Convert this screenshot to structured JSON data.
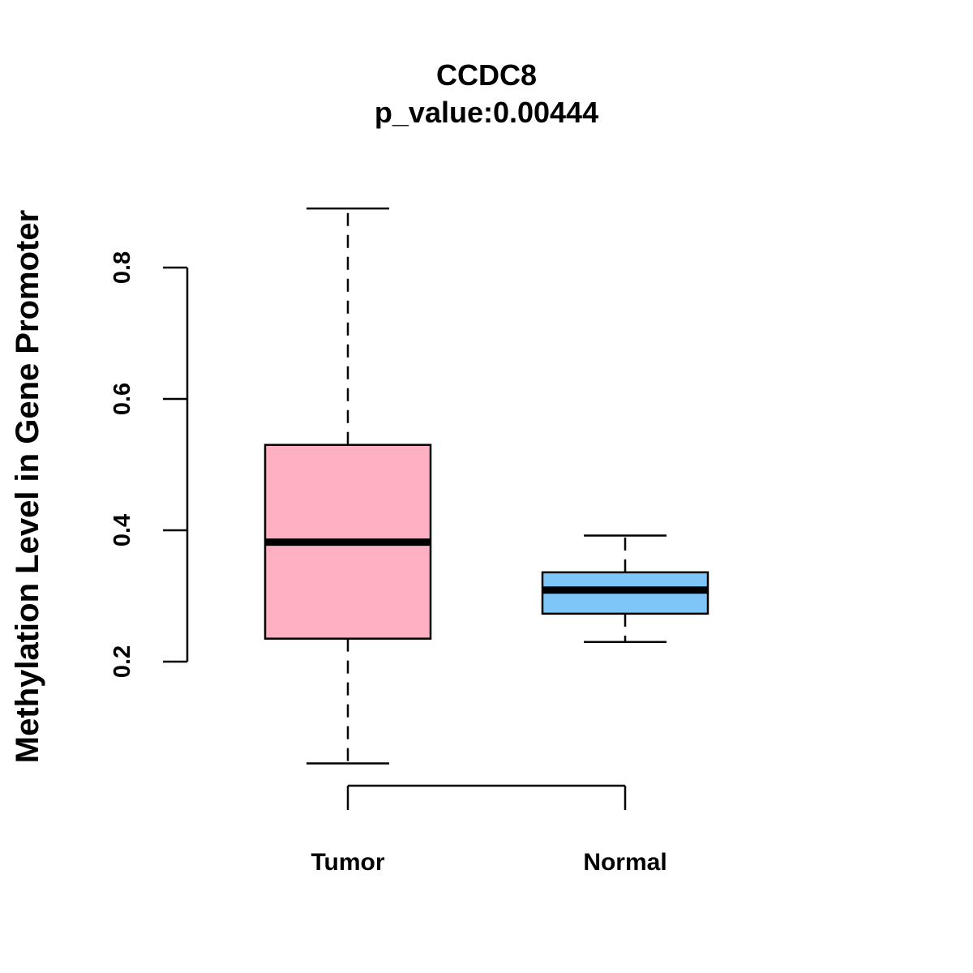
{
  "chart_data": {
    "type": "boxplot",
    "title": "CCDC8",
    "subtitle": "p_value:0.00444",
    "xlabel": "",
    "ylabel": "Methylation Level in Gene Promoter",
    "ylim": [
      0.2,
      0.8
    ],
    "yticks": [
      0.2,
      0.4,
      0.6,
      0.8
    ],
    "ytick_labels": [
      "0.2",
      "0.4",
      "0.6",
      "0.8"
    ],
    "grid": false,
    "categories": [
      "Tumor",
      "Normal"
    ],
    "series": [
      {
        "name": "Tumor",
        "min": 0.045,
        "q1": 0.235,
        "median": 0.382,
        "q3": 0.53,
        "max": 0.89,
        "color": "#FFB1C3"
      },
      {
        "name": "Normal",
        "min": 0.23,
        "q1": 0.273,
        "median": 0.309,
        "q3": 0.336,
        "max": 0.392,
        "color": "#7EC5F8"
      }
    ]
  }
}
